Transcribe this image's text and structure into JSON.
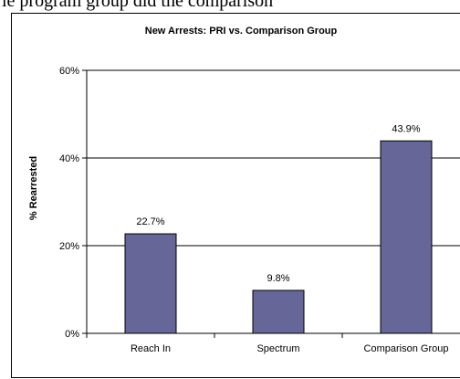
{
  "caption": "ie program group did the comparison",
  "chart_data": {
    "type": "bar",
    "title": "New Arrests: PRI vs. Comparison Group",
    "xlabel": "",
    "ylabel": "% Rearrested",
    "categories": [
      "Reach In",
      "Spectrum",
      "Comparison Group"
    ],
    "values": [
      22.7,
      9.8,
      43.9
    ],
    "data_labels": [
      "22.7%",
      "9.8%",
      "43.9%"
    ],
    "ylim": [
      0,
      60
    ],
    "y_ticks": [
      0,
      20,
      40,
      60
    ],
    "y_tick_labels": [
      "0%",
      "20%",
      "40%",
      "60%"
    ],
    "grid": true,
    "legend": "none",
    "bar_color": "#666699"
  }
}
